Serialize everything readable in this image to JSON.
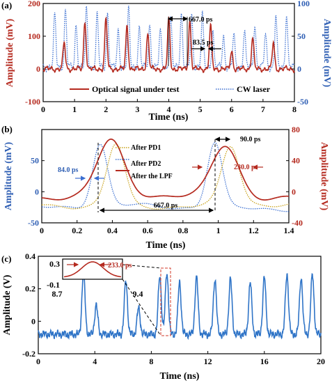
{
  "chart_data": [
    {
      "type": "line",
      "panel_label": "(a)",
      "xlabel": "Time (ns)",
      "ylabel_left": "Amplitude (mV)",
      "ylabel_right": "Amplitude (mV)",
      "xlim": [
        0,
        8
      ],
      "ylim_left": [
        -100,
        200
      ],
      "ylim_right": [
        -50,
        100
      ],
      "xticks": [
        "0",
        "1",
        "2",
        "3",
        "4",
        "5",
        "6",
        "7",
        "8"
      ],
      "yticks_left": [
        "-100",
        "0",
        "100",
        "200"
      ],
      "yticks_right": [
        "-50",
        "0",
        "50",
        "100"
      ],
      "legend": "bottom-center",
      "colors": {
        "signal": "#b52a1f",
        "cw": "#3b6fd1"
      },
      "series": [
        {
          "name": "Optical signal under test",
          "axis": "left",
          "style": "solid",
          "pulse_times": [
            0.67,
            1.33,
            2.0,
            2.67,
            3.33,
            4.0,
            4.67,
            5.33,
            6.0,
            6.67,
            7.33
          ],
          "pulse_peaks": [
            80,
            145,
            150,
            130,
            105,
            150,
            145,
            130,
            55,
            95,
            80
          ]
        },
        {
          "name": "CW laser",
          "axis": "right",
          "style": "dotted",
          "pulse_times": [
            0.37,
            0.71,
            1.05,
            1.38,
            1.72,
            2.05,
            2.39,
            2.72,
            3.06,
            3.39,
            3.73,
            4.06,
            4.4,
            4.73,
            5.07,
            5.4,
            5.74,
            6.07,
            6.41,
            6.74,
            7.08,
            7.41,
            7.75
          ],
          "pulse_peaks": [
            80,
            88,
            65,
            88,
            80,
            80,
            55,
            88,
            60,
            65,
            55,
            75,
            82,
            78,
            80,
            55,
            48,
            50,
            55,
            65,
            52,
            78,
            80
          ]
        }
      ],
      "annotations": [
        {
          "text": "667.0 ps",
          "x_start": 4.0,
          "x_end": 4.67
        },
        {
          "text": "83.5 ps",
          "x_start": 5.23,
          "x_end": 5.33
        }
      ]
    },
    {
      "type": "line",
      "panel_label": "(b)",
      "xlabel": "Time (ns)",
      "ylabel_left": "Amplitude (mV)",
      "ylabel_right": "Amplitude (mV)",
      "xlim": [
        0,
        1.4
      ],
      "ylim_left": [
        -50,
        100
      ],
      "ylim_right": [
        -40,
        80
      ],
      "xticks": [
        "0",
        "0.2",
        "0.4",
        "0.6",
        "0.8",
        "1",
        "1.2",
        "1.4"
      ],
      "yticks_left": [
        "-50",
        "0",
        "50"
      ],
      "yticks_right": [
        "-40",
        "0",
        "40",
        "80"
      ],
      "legend": "center",
      "colors": {
        "pd1": "#3b6fd1",
        "pd2": "#c9a21a",
        "lpf": "#b52a1f"
      },
      "series": [
        {
          "name": "After PD1",
          "style": "dotted",
          "peaks": [
            [
              0.33,
              75
            ],
            [
              0.98,
              80
            ]
          ]
        },
        {
          "name": "After PD2",
          "style": "dotted",
          "peaks": [
            [
              0.42,
              78
            ],
            [
              1.07,
              70
            ]
          ]
        },
        {
          "name": "After the LPF",
          "style": "solid",
          "peaks": [
            [
              0.39,
              80
            ],
            [
              1.04,
              75
            ]
          ]
        }
      ],
      "annotations": [
        {
          "text": "84.0 ps"
        },
        {
          "text": "90.0 ps"
        },
        {
          "text": "230.0 ps"
        },
        {
          "text": "667.0 ps",
          "x_start": 0.32,
          "x_end": 0.98
        }
      ]
    },
    {
      "type": "line",
      "panel_label": "(c)",
      "xlabel": "Time (ns)",
      "ylabel": "Amplitude (V)",
      "xlim": [
        0,
        20
      ],
      "ylim": [
        -0.2,
        0.4
      ],
      "xticks": [
        "0",
        "4",
        "8",
        "12",
        "16",
        "20"
      ],
      "yticks": [
        "-0.2",
        "0",
        "0.2",
        "0.4"
      ],
      "color": "#2f74c7",
      "pulse_times": [
        3.2,
        4.1,
        6.2,
        7.1,
        8.6,
        9.1,
        10.0,
        11.2,
        12.5,
        13.6,
        15.0,
        16.0,
        17.6,
        18.6,
        19.4
      ],
      "pulse_peaks": [
        0.3,
        0.1,
        0.25,
        0.08,
        0.28,
        0.3,
        0.24,
        0.27,
        0.26,
        0.26,
        0.24,
        0.27,
        0.29,
        0.27,
        0.29
      ],
      "inset": {
        "annotation": "233.0 ps",
        "xtick_labels": [
          "8.7",
          "9.4"
        ],
        "ytick_labels": [
          "0.3",
          "-0.1"
        ],
        "zoom_x": [
          8.7,
          9.4
        ]
      }
    }
  ]
}
